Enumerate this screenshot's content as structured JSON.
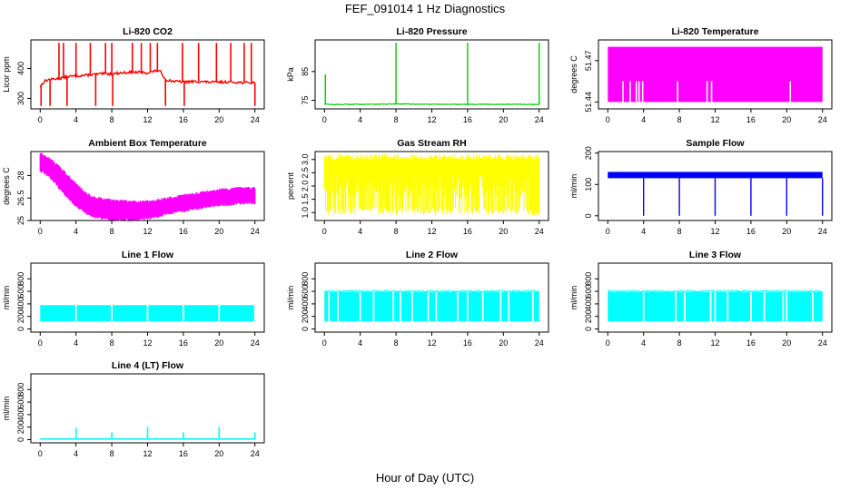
{
  "figure": {
    "title": "FEF_091014  1 Hz Diagnostics",
    "xlabel": "Hour of Day (UTC)"
  },
  "chart_data": [
    {
      "type": "line",
      "title": "Li-820 CO2",
      "ylabel": "Licor ppm",
      "color": "#ff0000",
      "xlim": [
        0,
        24
      ],
      "xticks": [
        "0",
        "4",
        "8",
        "12",
        "16",
        "20",
        "24"
      ],
      "ylim": [
        265,
        495
      ],
      "yticks": [
        {
          "value": 300,
          "label": "300"
        },
        {
          "value": 400,
          "label": "400"
        }
      ],
      "series": [
        {
          "x": [
            0,
            0.5,
            1,
            2,
            3,
            4,
            5,
            6,
            7,
            8,
            9,
            10,
            11,
            12,
            13,
            13.5,
            14,
            15,
            16,
            17,
            18,
            19,
            20,
            21,
            22,
            23,
            24
          ],
          "y": [
            340,
            358,
            363,
            366,
            372,
            375,
            377,
            380,
            382,
            382,
            385,
            387,
            387,
            385,
            393,
            388,
            362,
            357,
            355,
            356,
            356,
            354,
            354,
            355,
            354,
            352,
            352
          ],
          "spikes_up": [
            2.1,
            2.6,
            4.0,
            5.6,
            7.3,
            8.0,
            10.3,
            11.3,
            12.3,
            13.1,
            15.9,
            17.7,
            19.7,
            21.3,
            22.8,
            23.6
          ],
          "spike_top": 485,
          "spikes_down": [
            0.1,
            1.1,
            3.0,
            6.2,
            8.1,
            14.0,
            16.1,
            24.0
          ],
          "spike_bottom": 275
        }
      ]
    },
    {
      "type": "line",
      "title": "Li-820 Pressure",
      "ylabel": "kPa",
      "color": "#00cc00",
      "xlim": [
        0,
        24
      ],
      "xticks": [
        "0",
        "4",
        "8",
        "12",
        "16",
        "20",
        "24"
      ],
      "ylim": [
        72,
        96
      ],
      "yticks": [
        {
          "value": 75,
          "label": "75"
        },
        {
          "value": 85,
          "label": "85"
        }
      ],
      "series": [
        {
          "x": [
            0,
            0.5,
            4,
            8,
            12,
            16,
            20,
            24
          ],
          "y": [
            73.8,
            73.5,
            73.6,
            73.7,
            73.6,
            73.6,
            73.6,
            73.5
          ],
          "spikes_up": [
            0.1,
            8.0,
            16.0,
            24.0
          ],
          "spike_top": 95,
          "spike_first_top": 84
        }
      ]
    },
    {
      "type": "area",
      "title": "Li-820 Temperature",
      "ylabel": "degrees C",
      "color": "#ff00ff",
      "xlim": [
        0,
        24
      ],
      "xticks": [
        "0",
        "4",
        "8",
        "12",
        "16",
        "20",
        "24"
      ],
      "ylim": [
        51.435,
        51.485
      ],
      "yticks": [
        {
          "value": 51.44,
          "label": "51.44"
        },
        {
          "value": 51.47,
          "label": "51.47"
        }
      ],
      "series": [
        {
          "fill_range": [
            51.44,
            51.48
          ],
          "gap_top": 51.455,
          "gaps_x": [
            1.7,
            2.5,
            3.2,
            3.5,
            3.9,
            7.8,
            11.1,
            11.6,
            20.4
          ]
        }
      ]
    },
    {
      "type": "area",
      "title": "Ambient Box Temperature",
      "ylabel": "degrees C",
      "color": "#ff00ff",
      "xlim": [
        0,
        24
      ],
      "xticks": [
        "0",
        "4",
        "8",
        "12",
        "16",
        "20",
        "24"
      ],
      "ylim": [
        25.0,
        29.6
      ],
      "yticks": [
        {
          "value": 25,
          "label": "25"
        },
        {
          "value": 26.5,
          "label": "26.5"
        },
        {
          "value": 28,
          "label": "28"
        }
      ],
      "series": [
        {
          "x": [
            0,
            1,
            2,
            3,
            4,
            5,
            6,
            7,
            8,
            9,
            10,
            11,
            12,
            13,
            14,
            15,
            16,
            17,
            18,
            19,
            20,
            21,
            22,
            23,
            24
          ],
          "upper": [
            29.4,
            29.1,
            28.6,
            28.0,
            27.4,
            26.8,
            26.5,
            26.4,
            26.3,
            26.3,
            26.2,
            26.2,
            26.2,
            26.3,
            26.4,
            26.5,
            26.6,
            26.7,
            26.8,
            26.9,
            27.0,
            27.0,
            27.1,
            27.1,
            27.1
          ],
          "lower": [
            28.4,
            28.0,
            27.3,
            26.6,
            26.0,
            25.6,
            25.3,
            25.2,
            25.1,
            25.1,
            25.1,
            25.1,
            25.2,
            25.3,
            25.5,
            25.6,
            25.7,
            25.8,
            25.9,
            26.0,
            26.1,
            26.1,
            26.2,
            26.2,
            26.2
          ]
        }
      ]
    },
    {
      "type": "area",
      "title": "Gas Stream RH",
      "ylabel": "percent",
      "color": "#ffff00",
      "xlim": [
        0,
        24
      ],
      "xticks": [
        "0",
        "4",
        "8",
        "12",
        "16",
        "20",
        "24"
      ],
      "ylim": [
        0.7,
        3.3
      ],
      "yticks": [
        {
          "value": 1.0,
          "label": "1.0"
        },
        {
          "value": 1.5,
          "label": "1.5"
        },
        {
          "value": 2.0,
          "label": "2.0"
        },
        {
          "value": 2.5,
          "label": "2.5"
        },
        {
          "value": 3.0,
          "label": "3.0"
        }
      ],
      "series": [
        {
          "fill_range": [
            0.9,
            3.2
          ],
          "band_top": 2.4,
          "band_bottom": 1.5
        }
      ]
    },
    {
      "type": "line",
      "title": "Sample Flow",
      "ylabel": "ml/min",
      "color": "#0000ff",
      "xlim": [
        0,
        24
      ],
      "xticks": [
        "0",
        "4",
        "8",
        "12",
        "16",
        "20",
        "24"
      ],
      "ylim": [
        -15,
        205
      ],
      "yticks": [
        {
          "value": 0,
          "label": "0"
        },
        {
          "value": 100,
          "label": "100"
        },
        {
          "value": 200,
          "label": "200"
        }
      ],
      "series": [
        {
          "x": [
            0,
            24
          ],
          "y": [
            128,
            128
          ],
          "band": [
            120,
            140
          ],
          "dips": [
            4.0,
            8.0,
            12.0,
            16.0,
            20.0,
            24.0
          ],
          "dip_bottom": 0
        }
      ]
    },
    {
      "type": "area",
      "title": "Line 1 Flow",
      "ylabel": "ml/min",
      "color": "#00ffff",
      "xlim": [
        0,
        24
      ],
      "xticks": [
        "0",
        "4",
        "8",
        "12",
        "16",
        "20",
        "24"
      ],
      "ylim": [
        -50,
        1050
      ],
      "yticks": [
        {
          "value": 0,
          "label": "0"
        },
        {
          "value": 200,
          "label": "200"
        },
        {
          "value": 400,
          "label": "400"
        },
        {
          "value": 600,
          "label": "600"
        },
        {
          "value": 800,
          "label": "800"
        }
      ],
      "series": [
        {
          "fill_range": [
            120,
            380
          ],
          "gaps_x": [
            4.0,
            8.0,
            12.0,
            16.0,
            20.0,
            24.0
          ]
        }
      ]
    },
    {
      "type": "area",
      "title": "Line 2 Flow",
      "ylabel": "ml/min",
      "color": "#00ffff",
      "xlim": [
        0,
        24
      ],
      "xticks": [
        "0",
        "4",
        "8",
        "12",
        "16",
        "20",
        "24"
      ],
      "ylim": [
        -50,
        1050
      ],
      "yticks": [
        {
          "value": 0,
          "label": "0"
        },
        {
          "value": 200,
          "label": "200"
        },
        {
          "value": 400,
          "label": "400"
        },
        {
          "value": 600,
          "label": "600"
        },
        {
          "value": 800,
          "label": "800"
        }
      ],
      "series": [
        {
          "fill_range": [
            120,
            590
          ],
          "gaps_x": [
            0.5,
            1.5,
            4.0,
            5.5,
            7.7,
            8.5,
            9.8,
            11.6,
            12.5,
            14.9,
            16.0,
            17.7,
            19.7,
            20.6,
            23.3
          ]
        }
      ]
    },
    {
      "type": "area",
      "title": "Line 3 Flow",
      "ylabel": "ml/min",
      "color": "#00ffff",
      "xlim": [
        0,
        24
      ],
      "xticks": [
        "0",
        "4",
        "8",
        "12",
        "16",
        "20",
        "24"
      ],
      "ylim": [
        -50,
        1050
      ],
      "yticks": [
        {
          "value": 0,
          "label": "0"
        },
        {
          "value": 200,
          "label": "200"
        },
        {
          "value": 400,
          "label": "400"
        },
        {
          "value": 600,
          "label": "600"
        },
        {
          "value": 800,
          "label": "800"
        }
      ],
      "series": [
        {
          "fill_range": [
            120,
            590
          ],
          "gaps_x": [
            4.0,
            7.6,
            8.6,
            11.5,
            12.0,
            13.4,
            16.0,
            17.5,
            19.6,
            20.0,
            22.9
          ]
        }
      ]
    },
    {
      "type": "line",
      "title": "Line 4 (LT) Flow",
      "ylabel": "ml/min",
      "color": "#00ffff",
      "xlim": [
        0,
        24
      ],
      "xticks": [
        "0",
        "4",
        "8",
        "12",
        "16",
        "20",
        "24"
      ],
      "ylim": [
        -50,
        1050
      ],
      "yticks": [
        {
          "value": 0,
          "label": "0"
        },
        {
          "value": 200,
          "label": "200"
        },
        {
          "value": 400,
          "label": "400"
        },
        {
          "value": 600,
          "label": "600"
        },
        {
          "value": 800,
          "label": "800"
        }
      ],
      "series": [
        {
          "x": [
            0,
            24
          ],
          "y": [
            10,
            10
          ],
          "spikes_up": [
            4.0,
            8.0,
            12.0,
            16.0,
            20.0,
            24.0
          ],
          "spike_heights": [
            190,
            120,
            200,
            120,
            200,
            120
          ]
        }
      ]
    }
  ]
}
